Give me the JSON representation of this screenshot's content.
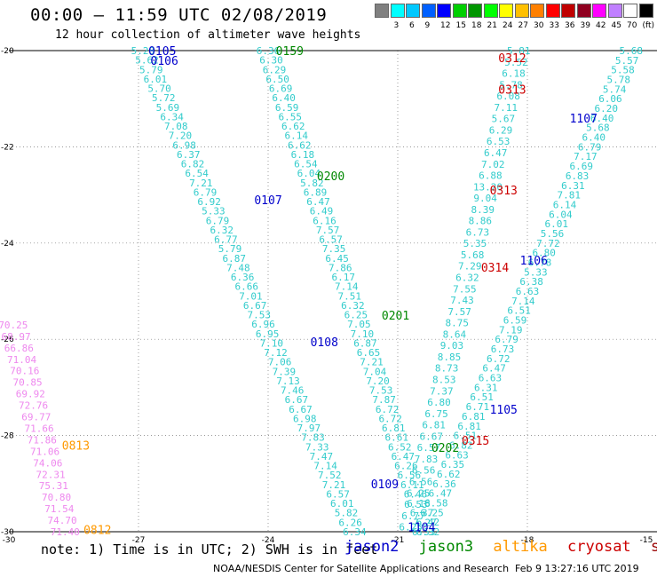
{
  "header": {
    "title": "00:00 – 11:59 UTC 02/08/2019",
    "subtitle": "12 hour collection of altimeter wave heights"
  },
  "colorbar": {
    "colors": [
      "#808080",
      "#00ffff",
      "#00c8ff",
      "#0060ff",
      "#0000ff",
      "#00d000",
      "#009600",
      "#00ff00",
      "#ffff00",
      "#ffc000",
      "#ff8000",
      "#ff0000",
      "#c00000",
      "#900020",
      "#ff00ff",
      "#c080ff",
      "#ffffff",
      "#000000"
    ],
    "labels": [
      "3",
      "6",
      "9",
      "12",
      "15",
      "18",
      "21",
      "24",
      "27",
      "30",
      "33",
      "36",
      "39",
      "42",
      "45",
      "70",
      "(ft)"
    ]
  },
  "axes": {
    "x_ticks": [
      "-30",
      "-27",
      "-24",
      "-21",
      "-18",
      "-15"
    ],
    "y_ticks": [
      "-20",
      "-22",
      "-24",
      "-26",
      "-28",
      "-30"
    ]
  },
  "legend": {
    "jason2": {
      "label": "jason2",
      "color": "#0000cc"
    },
    "jason3": {
      "label": "jason3",
      "color": "#008800"
    },
    "altika": {
      "label": "altika",
      "color": "#ff9900"
    },
    "cryosat": {
      "label": "cryosat",
      "color": "#cc0000"
    },
    "s3a": {
      "label": "s3a",
      "color": "#990000"
    }
  },
  "footnote": "note: 1) Time is in UTC; 2) SWH is in feet",
  "credit": "NOAA/NESDIS Center for Satellite Applications and Research",
  "stamp": "Feb  9 13:27:16 UTC 2019",
  "time_labels": [
    {
      "text": "0105",
      "lon": -26.45,
      "lat": -20.0,
      "sat": "jason2"
    },
    {
      "text": "0106",
      "lon": -26.4,
      "lat": -20.2,
      "sat": "jason2"
    },
    {
      "text": "0107",
      "lon": -24.0,
      "lat": -23.1,
      "sat": "jason2"
    },
    {
      "text": "0108",
      "lon": -22.7,
      "lat": -26.05,
      "sat": "jason2"
    },
    {
      "text": "0109",
      "lon": -21.3,
      "lat": -29.0,
      "sat": "jason2"
    },
    {
      "text": "1104",
      "lon": -20.45,
      "lat": -29.9,
      "sat": "jason2"
    },
    {
      "text": "1105",
      "lon": -18.55,
      "lat": -27.45,
      "sat": "jason2"
    },
    {
      "text": "1106",
      "lon": -17.85,
      "lat": -24.35,
      "sat": "jason2"
    },
    {
      "text": "1107",
      "lon": -16.7,
      "lat": -21.4,
      "sat": "jason2"
    },
    {
      "text": "0159",
      "lon": -23.5,
      "lat": -20.0,
      "sat": "jason3"
    },
    {
      "text": "0200",
      "lon": -22.55,
      "lat": -22.6,
      "sat": "jason3"
    },
    {
      "text": "0201",
      "lon": -21.05,
      "lat": -25.5,
      "sat": "jason3"
    },
    {
      "text": "0202",
      "lon": -19.9,
      "lat": -28.25,
      "sat": "jason3"
    },
    {
      "text": "0312",
      "lon": -18.35,
      "lat": -20.15,
      "sat": "cryosat"
    },
    {
      "text": "0313",
      "lon": -18.35,
      "lat": -20.8,
      "sat": "cryosat"
    },
    {
      "text": "0313",
      "lon": -18.55,
      "lat": -22.9,
      "sat": "cryosat"
    },
    {
      "text": "0314",
      "lon": -18.75,
      "lat": -24.5,
      "sat": "cryosat"
    },
    {
      "text": "0315",
      "lon": -19.2,
      "lat": -28.1,
      "sat": "cryosat"
    },
    {
      "text": "0813",
      "lon": -28.45,
      "lat": -28.2,
      "sat": "altika"
    },
    {
      "text": "0812",
      "lon": -27.95,
      "lat": -29.95,
      "sat": "altika"
    }
  ],
  "tracks": [
    {
      "color": "#33cccc",
      "lon0": -26.9,
      "lat0": -20.0,
      "lon1": -22.0,
      "lat1": -30.0,
      "values": [
        "5.28",
        "5.62",
        "5.79",
        "6.01",
        "5.70",
        "5.72",
        "5.69",
        "6.34",
        "7.08",
        "7.20",
        "6.98",
        "6.37",
        "6.82",
        "6.54",
        "7.21",
        "6.79",
        "6.92",
        "5.33",
        "6.79",
        "6.32",
        "6.77",
        "5.79",
        "6.87",
        "7.48",
        "6.36",
        "6.66",
        "7.01",
        "6.67",
        "7.53",
        "6.96",
        "6.95",
        "7.10",
        "7.12",
        "7.06",
        "7.39",
        "7.13",
        "7.46",
        "6.67",
        "6.67",
        "6.98",
        "7.97",
        "7.83",
        "7.33",
        "7.47",
        "7.14",
        "7.52",
        "7.21",
        "6.57",
        "6.01",
        "5.82",
        "6.26",
        "6.34"
      ]
    },
    {
      "color": "#33cccc",
      "lon0": -24.0,
      "lat0": -20.0,
      "lon1": -20.3,
      "lat1": -30.0,
      "values": [
        "6.36",
        "6.30",
        "6.29",
        "6.50",
        "6.69",
        "6.40",
        "6.59",
        "6.55",
        "6.62",
        "6.14",
        "6.62",
        "6.18",
        "6.54",
        "6.04",
        "5.82",
        "6.89",
        "6.47",
        "6.49",
        "6.16",
        "7.57",
        "6.57",
        "7.35",
        "6.45",
        "7.86",
        "6.17",
        "7.14",
        "7.51",
        "6.32",
        "6.25",
        "7.05",
        "7.10",
        "6.87",
        "6.65",
        "7.21",
        "7.04",
        "7.20",
        "7.53",
        "7.87",
        "6.72",
        "6.72",
        "6.81",
        "6.61",
        "6.52",
        "6.47",
        "6.26",
        "6.56",
        "6.11",
        "6.46",
        "6.18",
        "6.37",
        "7.27",
        "6.32"
      ]
    },
    {
      "color": "#33cccc",
      "lon0": -18.2,
      "lat0": -20.0,
      "lon1": -20.7,
      "lat1": -29.9,
      "values": [
        "5.81",
        "5.52",
        "6.18",
        "5.78",
        "6.08",
        "7.11",
        "5.67",
        "6.29",
        "6.53",
        "6.47",
        "7.02",
        "6.88",
        "13.20",
        "9.04",
        "8.39",
        "8.86",
        "6.73",
        "5.35",
        "5.68",
        "7.29",
        "6.32",
        "7.55",
        "7.43",
        "7.57",
        "8.75",
        "8.64",
        "9.03",
        "8.85",
        "8.73",
        "8.53",
        "7.37",
        "6.80",
        "6.75",
        "6.81",
        "6.67",
        "6.57",
        "7.83",
        "6.56",
        "6.56",
        "6.25",
        "6.53",
        "6.77",
        "6.25"
      ]
    },
    {
      "color": "#33cccc",
      "lon0": -15.6,
      "lat0": -20.0,
      "lon1": -20.4,
      "lat1": -30.0,
      "values": [
        "5.68",
        "5.57",
        "5.58",
        "5.78",
        "5.74",
        "6.06",
        "6.20",
        "6.40",
        "5.68",
        "6.40",
        "6.79",
        "7.17",
        "6.69",
        "6.83",
        "6.31",
        "7.81",
        "6.14",
        "6.04",
        "6.01",
        "5.56",
        "7.72",
        "6.80",
        "6.78",
        "5.33",
        "6.38",
        "6.63",
        "7.14",
        "6.51",
        "6.59",
        "7.19",
        "6.79",
        "6.73",
        "6.72",
        "6.47",
        "6.63",
        "6.31",
        "6.51",
        "6.71",
        "6.81",
        "6.81",
        "6.51",
        "6.82",
        "6.63",
        "6.35",
        "6.62",
        "6.36",
        "6.47",
        "6.58",
        "6.25",
        "6.42",
        "6.53"
      ]
    },
    {
      "color": "#ee88ee",
      "lon0": -29.9,
      "lat0": -25.7,
      "lon1": -28.7,
      "lat1": -30.0,
      "values": [
        "70.25",
        "68.97",
        "66.86",
        "71.04",
        "70.16",
        "70.85",
        "69.92",
        "72.76",
        "69.77",
        "71.66",
        "71.86",
        "71.06",
        "74.06",
        "72.31",
        "75.31",
        "70.80",
        "71.54",
        "74.70",
        "71.40"
      ]
    }
  ]
}
